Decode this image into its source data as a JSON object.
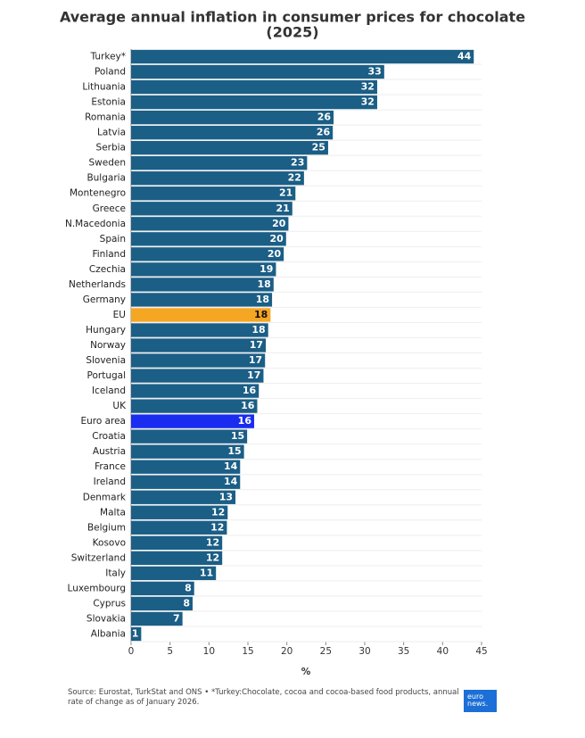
{
  "chart_data": {
    "type": "hbar",
    "title_lines": [
      "Average annual inflation in consumer prices for chocolate",
      "(2025)"
    ],
    "categories": [
      "Turkey*",
      "Poland",
      "Lithuania",
      "Estonia",
      "Romania",
      "Latvia",
      "Serbia",
      "Sweden",
      "Bulgaria",
      "Montenegro",
      "Greece",
      "N.Macedonia",
      "Spain",
      "Finland",
      "Czechia",
      "Netherlands",
      "Germany",
      "EU",
      "Hungary",
      "Norway",
      "Slovenia",
      "Portugal",
      "Iceland",
      "UK",
      "Euro area",
      "Croatia",
      "Austria",
      "France",
      "Ireland",
      "Denmark",
      "Malta",
      "Belgium",
      "Kosovo",
      "Switzerland",
      "Italy",
      "Luxembourg",
      "Cyprus",
      "Slovakia",
      "Albania"
    ],
    "values": [
      44.0,
      32.5,
      31.6,
      31.6,
      26.0,
      25.9,
      25.3,
      22.6,
      22.2,
      21.1,
      20.7,
      20.2,
      19.9,
      19.6,
      18.6,
      18.3,
      18.1,
      17.9,
      17.6,
      17.3,
      17.2,
      17.0,
      16.4,
      16.2,
      15.8,
      14.9,
      14.5,
      14.0,
      14.0,
      13.4,
      12.4,
      12.3,
      11.7,
      11.7,
      10.9,
      8.1,
      7.9,
      6.6,
      1.3
    ],
    "value_labels": [
      "44",
      "33",
      "32",
      "32",
      "26",
      "26",
      "25",
      "23",
      "22",
      "21",
      "21",
      "20",
      "20",
      "20",
      "19",
      "18",
      "18",
      "18",
      "18",
      "17",
      "17",
      "17",
      "16",
      "16",
      "16",
      "15",
      "15",
      "14",
      "14",
      "13",
      "12",
      "12",
      "12",
      "12",
      "11",
      "8",
      "8",
      "7",
      "1"
    ],
    "color": "#1b5e86",
    "highlights": [
      {
        "index": 17,
        "color": "#f5a623"
      },
      {
        "index": 24,
        "color": "#1a2cf0"
      }
    ],
    "xlim": [
      0,
      45
    ],
    "xticks": [
      0,
      5,
      10,
      15,
      20,
      25,
      30,
      35,
      40,
      45
    ],
    "xlabel": "%",
    "footer": "Source: Eurostat, TurkStat and ONS • *Turkey:Chocolate, cocoa and cocoa-based food products, annual rate of change as of January 2026.",
    "logo_lines": [
      "euro",
      "news."
    ]
  }
}
